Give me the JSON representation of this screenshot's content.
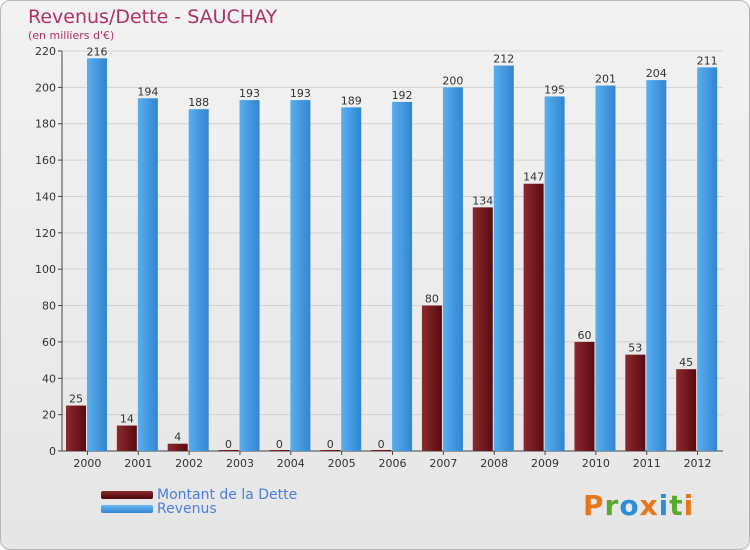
{
  "header": {
    "title": "Revenus/Dette - SAUCHAY",
    "subtitle": "(en milliers d'€)"
  },
  "legend": {
    "items": [
      {
        "label": "Montant de la Dette",
        "color": "#6b0f14"
      },
      {
        "label": "Revenus",
        "color": "#3d95e0"
      }
    ]
  },
  "logo": {
    "text": "Proxiti",
    "letters": [
      {
        "ch": "P",
        "color": "#e8761a"
      },
      {
        "ch": "r",
        "color": "#5aa82e"
      },
      {
        "ch": "o",
        "color": "#2a8fd6"
      },
      {
        "ch": "x",
        "color": "#e8761a"
      },
      {
        "ch": "i",
        "color": "#2a8fd6"
      },
      {
        "ch": "t",
        "color": "#5aa82e"
      },
      {
        "ch": "i",
        "color": "#e8761a"
      }
    ]
  },
  "chart_data": {
    "type": "bar",
    "title": "Revenus/Dette - SAUCHAY",
    "ylabel": "(en milliers d'€)",
    "xlabel": "",
    "categories": [
      "2000",
      "2001",
      "2002",
      "2003",
      "2004",
      "2005",
      "2006",
      "2007",
      "2008",
      "2009",
      "2010",
      "2011",
      "2012"
    ],
    "series": [
      {
        "name": "Montant de la Dette",
        "color": "#6b0f14",
        "values": [
          25,
          14,
          4,
          0,
          0,
          0,
          0,
          80,
          134,
          147,
          60,
          53,
          45
        ]
      },
      {
        "name": "Revenus",
        "color": "#3d95e0",
        "values": [
          216,
          194,
          188,
          193,
          193,
          189,
          192,
          200,
          212,
          195,
          201,
          204,
          211
        ]
      }
    ],
    "ylim": [
      0,
      220
    ],
    "yticks": [
      0,
      20,
      40,
      60,
      80,
      100,
      120,
      140,
      160,
      180,
      200,
      220
    ],
    "grid": true,
    "legend_position": "bottom-left"
  }
}
